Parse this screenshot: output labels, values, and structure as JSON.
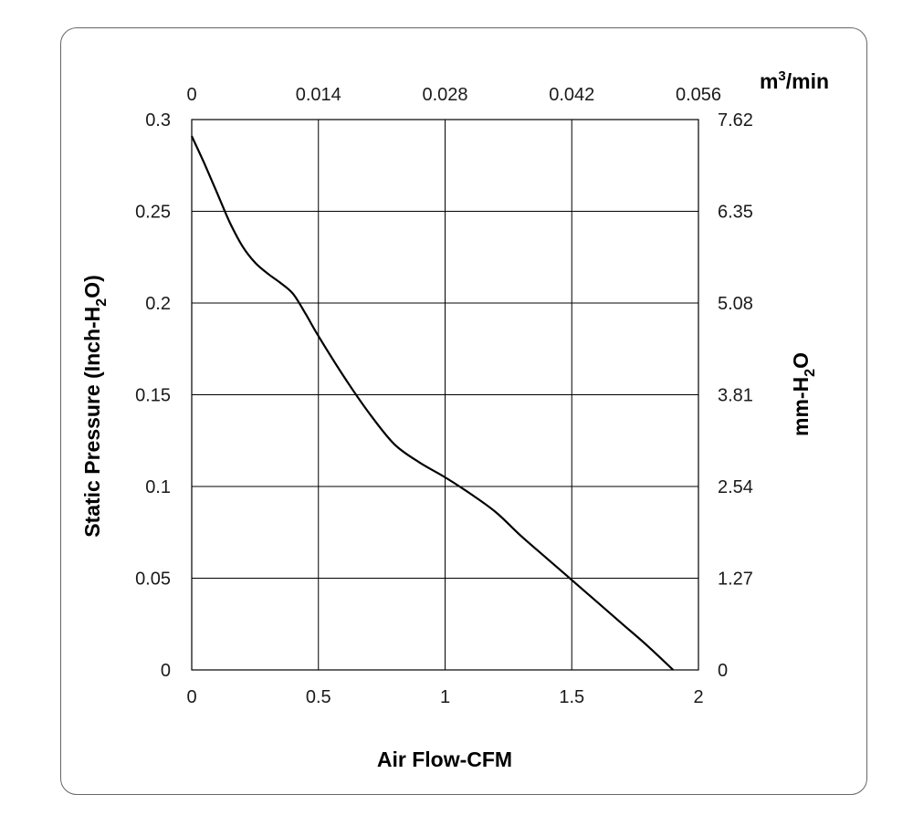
{
  "chart_data": {
    "type": "line",
    "x_bottom": {
      "label": "Air Flow-CFM",
      "ticks": [
        "0",
        "0.5",
        "1",
        "1.5",
        "2"
      ],
      "range": [
        0,
        2
      ]
    },
    "x_top": {
      "unit_base": "m",
      "unit_sup": "3",
      "unit_tail": "/min",
      "ticks": [
        "0",
        "0.014",
        "0.028",
        "0.042",
        "0.056"
      ]
    },
    "y_left": {
      "label_pre": "Static Pressure (Inch-H",
      "label_sub": "2",
      "label_post": "O)",
      "ticks": [
        "0",
        "0.05",
        "0.1",
        "0.15",
        "0.2",
        "0.25",
        "0.3"
      ],
      "range": [
        0,
        0.3
      ]
    },
    "y_right": {
      "label_pre": "mm-H",
      "label_sub": "2",
      "label_post": "O",
      "ticks": [
        "0",
        "1.27",
        "2.54",
        "3.81",
        "5.08",
        "6.35",
        "7.62"
      ]
    },
    "grid": true,
    "series": [
      {
        "x": [
          0,
          0.05,
          0.1,
          0.15,
          0.2,
          0.25,
          0.3,
          0.35,
          0.4,
          0.45,
          0.5,
          0.6,
          0.7,
          0.8,
          0.9,
          1.0,
          1.1,
          1.2,
          1.3,
          1.4,
          1.5,
          1.6,
          1.7,
          1.8,
          1.9
        ],
        "y": [
          0.291,
          0.276,
          0.26,
          0.244,
          0.231,
          0.222,
          0.216,
          0.211,
          0.205,
          0.194,
          0.182,
          0.16,
          0.14,
          0.123,
          0.113,
          0.105,
          0.096,
          0.086,
          0.073,
          0.061,
          0.049,
          0.037,
          0.025,
          0.013,
          0.0
        ],
        "color": "#000000"
      }
    ]
  }
}
